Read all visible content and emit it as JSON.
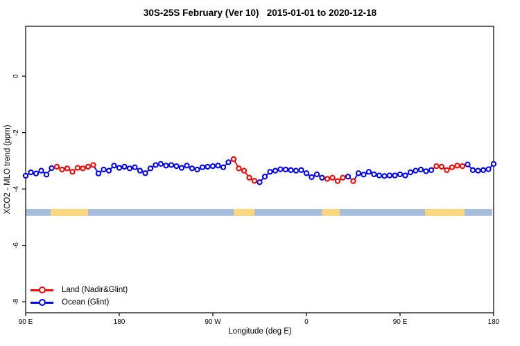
{
  "title": "30S-25S February (Ver 10)   2015-01-01 to 2020-12-18",
  "axes": {
    "x_label": "Longitude (deg E)",
    "y_label": "XCO2 - MLO trend (ppm)"
  },
  "legend": {
    "items": [
      {
        "label": "Land (Nadir&Glint)",
        "series": "land"
      },
      {
        "label": "Ocean (Glint)",
        "series": "ocean"
      }
    ]
  },
  "colors": {
    "land": "#FF0000",
    "ocean": "#0000FF",
    "band_land": "#FBD87F",
    "band_ocean": "#A6BEDC",
    "axis": "#000000",
    "background": "#FFFFFF"
  },
  "chart_data": {
    "type": "scatter",
    "title": "30S-25S February (Ver 10)   2015-01-01 to 2020-12-18",
    "xlabel": "Longitude (deg E)",
    "ylabel": "XCO2 - MLO trend (ppm)",
    "xlim": [
      90,
      540
    ],
    "ylim": [
      -8.39,
      1.77
    ],
    "grid": false,
    "legend_position": "bottom-left-inside",
    "x_ticks": [
      {
        "value": 90,
        "label": "90 E"
      },
      {
        "value": 180,
        "label": "180"
      },
      {
        "value": 270,
        "label": "90 W"
      },
      {
        "value": 360,
        "label": "0"
      },
      {
        "value": 450,
        "label": "90 E"
      },
      {
        "value": 540,
        "label": "180"
      }
    ],
    "y_ticks": [
      {
        "value": 0,
        "label": "0"
      },
      {
        "value": -2,
        "label": "-2"
      },
      {
        "value": -4,
        "label": "-4"
      },
      {
        "value": -6,
        "label": "-6"
      },
      {
        "value": -8,
        "label": "-8"
      }
    ],
    "series_legend": [
      {
        "name": "Land (Nadir&Glint)",
        "key": "L"
      },
      {
        "name": "Ocean (Glint)",
        "key": "O"
      }
    ],
    "points_format": [
      "longitude_deg_along_axis",
      "xco2_minus_mlo_trend_ppm",
      "series L=land O=ocean"
    ],
    "points": [
      [
        90,
        -3.53,
        "O"
      ],
      [
        95,
        -3.41,
        "O"
      ],
      [
        100,
        -3.45,
        "O"
      ],
      [
        105,
        -3.35,
        "O"
      ],
      [
        110,
        -3.49,
        "O"
      ],
      [
        115,
        -3.26,
        "O"
      ],
      [
        120,
        -3.21,
        "L"
      ],
      [
        125,
        -3.31,
        "L"
      ],
      [
        130,
        -3.27,
        "L"
      ],
      [
        135,
        -3.39,
        "L"
      ],
      [
        140,
        -3.25,
        "L"
      ],
      [
        145,
        -3.27,
        "L"
      ],
      [
        150,
        -3.21,
        "L"
      ],
      [
        155,
        -3.15,
        "L"
      ],
      [
        160,
        -3.45,
        "O"
      ],
      [
        165,
        -3.31,
        "O"
      ],
      [
        170,
        -3.35,
        "O"
      ],
      [
        175,
        -3.17,
        "O"
      ],
      [
        180,
        -3.25,
        "O"
      ],
      [
        185,
        -3.21,
        "O"
      ],
      [
        190,
        -3.27,
        "O"
      ],
      [
        195,
        -3.23,
        "O"
      ],
      [
        200,
        -3.35,
        "O"
      ],
      [
        205,
        -3.44,
        "O"
      ],
      [
        210,
        -3.27,
        "O"
      ],
      [
        215,
        -3.15,
        "O"
      ],
      [
        220,
        -3.11,
        "O"
      ],
      [
        225,
        -3.17,
        "O"
      ],
      [
        230,
        -3.15,
        "O"
      ],
      [
        235,
        -3.19,
        "O"
      ],
      [
        240,
        -3.25,
        "O"
      ],
      [
        245,
        -3.17,
        "O"
      ],
      [
        250,
        -3.27,
        "O"
      ],
      [
        255,
        -3.31,
        "O"
      ],
      [
        260,
        -3.23,
        "O"
      ],
      [
        265,
        -3.21,
        "O"
      ],
      [
        270,
        -3.19,
        "O"
      ],
      [
        275,
        -3.17,
        "O"
      ],
      [
        280,
        -3.23,
        "O"
      ],
      [
        285,
        -3.05,
        "O"
      ],
      [
        290,
        -2.94,
        "L"
      ],
      [
        295,
        -3.27,
        "L"
      ],
      [
        300,
        -3.35,
        "L"
      ],
      [
        305,
        -3.6,
        "L"
      ],
      [
        310,
        -3.71,
        "L"
      ],
      [
        315,
        -3.76,
        "O"
      ],
      [
        320,
        -3.56,
        "O"
      ],
      [
        325,
        -3.39,
        "O"
      ],
      [
        330,
        -3.35,
        "O"
      ],
      [
        335,
        -3.3,
        "O"
      ],
      [
        340,
        -3.31,
        "O"
      ],
      [
        345,
        -3.33,
        "O"
      ],
      [
        350,
        -3.35,
        "O"
      ],
      [
        355,
        -3.33,
        "O"
      ],
      [
        360,
        -3.44,
        "O"
      ],
      [
        365,
        -3.58,
        "O"
      ],
      [
        370,
        -3.48,
        "O"
      ],
      [
        375,
        -3.6,
        "O"
      ],
      [
        380,
        -3.64,
        "L"
      ],
      [
        385,
        -3.6,
        "L"
      ],
      [
        390,
        -3.72,
        "L"
      ],
      [
        395,
        -3.6,
        "L"
      ],
      [
        400,
        -3.56,
        "O"
      ],
      [
        405,
        -3.72,
        "L"
      ],
      [
        410,
        -3.44,
        "O"
      ],
      [
        415,
        -3.49,
        "O"
      ],
      [
        420,
        -3.39,
        "O"
      ],
      [
        425,
        -3.48,
        "O"
      ],
      [
        430,
        -3.52,
        "O"
      ],
      [
        435,
        -3.54,
        "O"
      ],
      [
        440,
        -3.52,
        "O"
      ],
      [
        445,
        -3.52,
        "O"
      ],
      [
        450,
        -3.48,
        "O"
      ],
      [
        455,
        -3.52,
        "O"
      ],
      [
        460,
        -3.41,
        "O"
      ],
      [
        465,
        -3.35,
        "O"
      ],
      [
        470,
        -3.31,
        "O"
      ],
      [
        475,
        -3.37,
        "O"
      ],
      [
        480,
        -3.33,
        "O"
      ],
      [
        485,
        -3.19,
        "L"
      ],
      [
        490,
        -3.21,
        "L"
      ],
      [
        495,
        -3.33,
        "L"
      ],
      [
        500,
        -3.23,
        "L"
      ],
      [
        505,
        -3.17,
        "L"
      ],
      [
        510,
        -3.19,
        "L"
      ],
      [
        515,
        -3.13,
        "O"
      ],
      [
        520,
        -3.33,
        "O"
      ],
      [
        525,
        -3.35,
        "O"
      ],
      [
        530,
        -3.33,
        "O"
      ],
      [
        535,
        -3.3,
        "O"
      ],
      [
        540,
        -3.11,
        "O"
      ]
    ],
    "surface_band": {
      "description": "land/ocean indicator strip",
      "val_top": -4.71,
      "val_bottom": -4.95,
      "from": 90,
      "to": 538.7,
      "land_segments": [
        {
          "from": 114,
          "to": 150
        },
        {
          "from": 290,
          "to": 310
        },
        {
          "from": 375,
          "to": 392
        },
        {
          "from": 474,
          "to": 512
        }
      ]
    }
  }
}
